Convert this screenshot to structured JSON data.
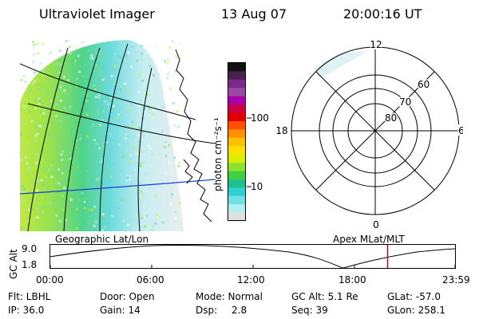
{
  "header": {
    "instrument": "Ultraviolet Imager",
    "date": "13 Aug 07",
    "time": "20:00:16 UT"
  },
  "colorbar": {
    "unit_label": "photon cm⁻²s⁻¹",
    "ticks": [
      "100",
      "10"
    ],
    "scale": "log",
    "colors": [
      "#111111",
      "#4a2050",
      "#7a2a8a",
      "#9a4aa0",
      "#aa00aa",
      "#cc0044",
      "#e00000",
      "#ff5000",
      "#ff9000",
      "#ffc000",
      "#ffe000",
      "#d8f000",
      "#90e030",
      "#40d040",
      "#20c090",
      "#30d0d0",
      "#70e0e0",
      "#b0eef0",
      "#e0e0e0"
    ]
  },
  "polar": {
    "lat_labels": [
      "80",
      "70",
      "60"
    ],
    "mlt_labels": [
      "12",
      "18",
      "6",
      "0"
    ]
  },
  "timeline": {
    "ylabel": "GC Alt",
    "yticks": [
      "9.0",
      "1.8"
    ],
    "left_caption": "Geographic Lat/Lon",
    "right_caption": "Apex  MLat/MLT",
    "xticks": [
      "00:00",
      "06:00",
      "12:00",
      "18:00",
      "23:59"
    ],
    "current_hour": 20.0,
    "marker_color": "#dd0000"
  },
  "info": {
    "row1": {
      "filter": "Flt: LBHL",
      "door": "Door: Open",
      "mode": "Mode: Normal",
      "alt": "GC Alt: 5.1 Re",
      "glat": "GLat: -57.0"
    },
    "row2": {
      "ip": "IP: 36.0",
      "gain": "Gain: 14",
      "dsp_label": "Dsp:",
      "dsp_value": "2.8",
      "seq": "Seq: 39",
      "glon": "GLon: 258.1"
    }
  }
}
